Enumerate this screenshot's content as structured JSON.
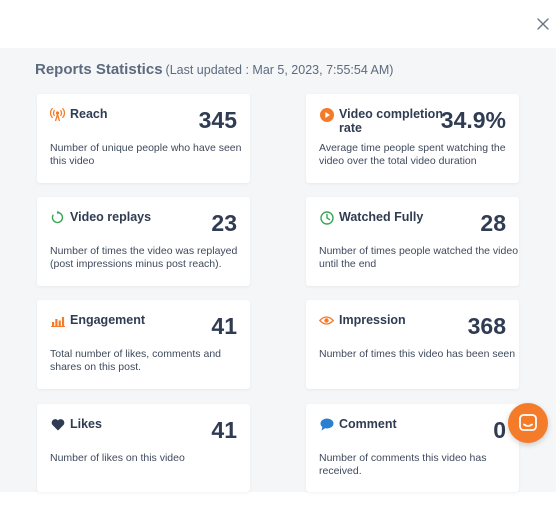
{
  "header": {
    "title": "Reports Statistics",
    "last_updated": "(Last updated : Mar 5, 2023, 7:55:54 AM)"
  },
  "colors": {
    "accent": "#f47b2a",
    "blue": "#2b7fd1",
    "green": "#3aa657",
    "navy": "#2f3c52"
  },
  "cards": [
    {
      "icon": "broadcast-icon",
      "label": "Reach",
      "value": "345",
      "description": "Number of unique people who have seen this video"
    },
    {
      "icon": "play-circle-icon",
      "label": "Video completion rate",
      "value": "34.9%",
      "description": "Average time people spent watching the video over the total video duration"
    },
    {
      "icon": "replay-icon",
      "label": "Video replays",
      "value": "23",
      "description": "Number of times the video was replayed (post impressions minus post reach)."
    },
    {
      "icon": "clock-icon",
      "label": "Watched Fully",
      "value": "28",
      "description": "Number of times people watched the video until the end"
    },
    {
      "icon": "bar-chart-icon",
      "label": "Engagement",
      "value": "41",
      "description": "Total number of likes, comments and shares on this post."
    },
    {
      "icon": "eye-icon",
      "label": "Impression",
      "value": "368",
      "description": "Number of times this video has been seen"
    },
    {
      "icon": "heart-icon",
      "label": "Likes",
      "value": "41",
      "description": "Number of likes on this video"
    },
    {
      "icon": "comment-icon",
      "label": "Comment",
      "value": "0",
      "description": "Number of comments this video has received."
    }
  ],
  "chat": {
    "icon": "chat-icon"
  },
  "close": {
    "icon": "close-icon"
  }
}
